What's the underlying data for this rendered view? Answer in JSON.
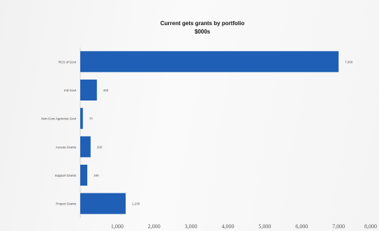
{
  "chart_data": {
    "type": "bar",
    "orientation": "horizontal",
    "title": "Current gets grants by portfolio",
    "subtitle": "$000s",
    "xlabel": "",
    "ylabel": "",
    "categories": [
      "RCS of Govt",
      "Ind Govt",
      "Non-Core Agencies Govt",
      "Access Grants",
      "Support Grants",
      "Project Grants"
    ],
    "values": [
      7000,
      450,
      70,
      280,
      190,
      1230
    ],
    "value_labels": [
      "7,000",
      "450",
      "70",
      "280",
      "190",
      "1,230"
    ],
    "xlim": [
      0,
      8000
    ],
    "x_ticks": [
      1000,
      2000,
      3000,
      4000,
      5000,
      6000,
      7000,
      8000
    ],
    "x_tick_labels": [
      "1,000",
      "2,000",
      "3,000",
      "4,000",
      "5,000",
      "6,000",
      "7,000",
      "8,000"
    ],
    "bar_color": "#1f5fb5",
    "grid": false,
    "legend": "none"
  }
}
